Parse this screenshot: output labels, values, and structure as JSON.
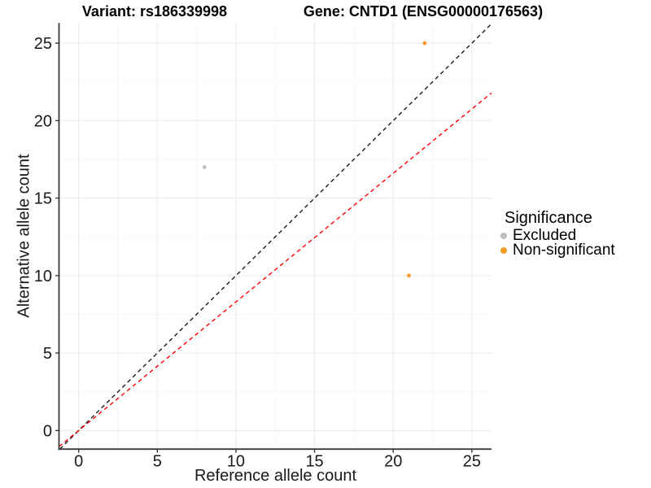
{
  "titles": {
    "variant": "Variant: rs186339998",
    "gene": "Gene: CNTD1 (ENSG00000176563)"
  },
  "chart_data": {
    "type": "scatter",
    "xlabel": "Reference allele count",
    "ylabel": "Alternative allele count",
    "xticks": [
      0,
      5,
      10,
      15,
      20,
      25
    ],
    "yticks": [
      0,
      5,
      10,
      15,
      20,
      25
    ],
    "xlim": [
      -1.25,
      26.25
    ],
    "ylim": [
      -1.2,
      26.3
    ],
    "minor_grid_step": 2.5,
    "grid": true,
    "points": [
      {
        "x": 8,
        "y": 17,
        "group": "Excluded"
      },
      {
        "x": 22,
        "y": 25,
        "group": "Non-significant"
      },
      {
        "x": 21,
        "y": 10,
        "group": "Non-significant"
      }
    ],
    "lines": [
      {
        "name": "identity-line",
        "slope": 1.0,
        "intercept": 0,
        "color": "#1a1a1a",
        "style": "dashed"
      },
      {
        "name": "expected-ratio-line",
        "slope": 0.83,
        "intercept": 0,
        "color": "#ff0000",
        "style": "dashed"
      }
    ],
    "legend": {
      "title": "Significance",
      "position": "right",
      "items": [
        {
          "label": "Excluded",
          "color": "#bdbdbd"
        },
        {
          "label": "Non-significant",
          "color": "#f89b29"
        }
      ]
    }
  }
}
